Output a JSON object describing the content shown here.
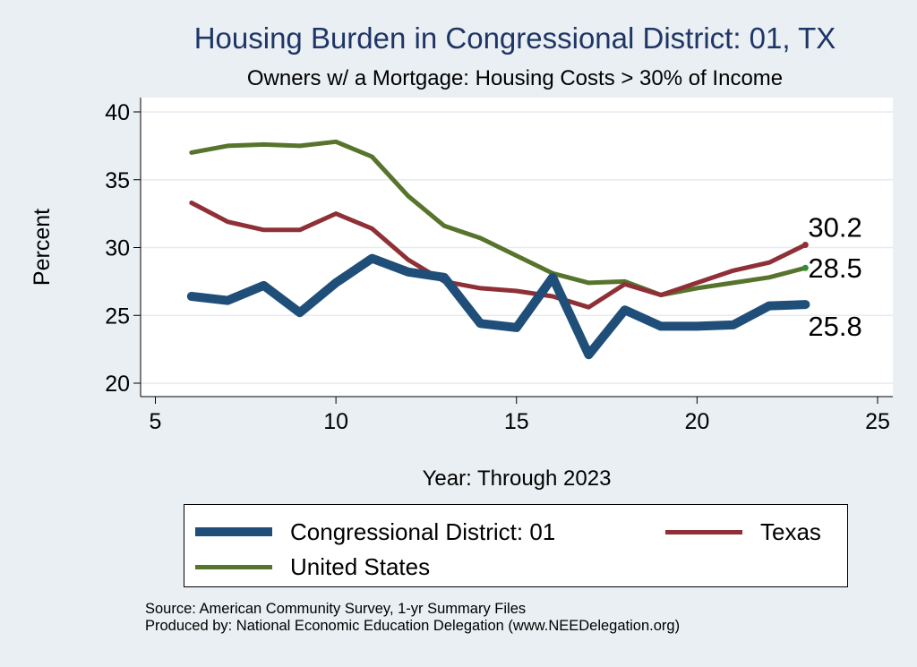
{
  "chart_data": {
    "type": "line",
    "title": "Housing Burden in Congressional District:  01, TX",
    "subtitle": "Owners w/ a Mortgage: Housing Costs > 30% of Income",
    "xlabel": "Year: Through 2023",
    "ylabel": "Percent",
    "xlim": [
      5,
      25
    ],
    "ylim": [
      20,
      40
    ],
    "xticks": [
      5,
      10,
      15,
      20,
      25
    ],
    "yticks": [
      20,
      25,
      30,
      35,
      40
    ],
    "grid": true,
    "legend_position": "bottom",
    "series": [
      {
        "name": "Congressional District:  01",
        "color": "#1f4e79",
        "x": [
          6,
          7,
          8,
          9,
          10,
          11,
          12,
          13,
          14,
          15,
          16,
          17,
          18,
          19,
          20,
          21,
          22,
          23
        ],
        "values": [
          26.4,
          26.1,
          27.2,
          25.2,
          27.4,
          29.2,
          28.2,
          27.8,
          24.4,
          24.1,
          27.8,
          22.1,
          25.4,
          24.2,
          24.2,
          24.3,
          25.7,
          25.8
        ],
        "end_label": "25.8"
      },
      {
        "name": "Texas",
        "color": "#8e3036",
        "x": [
          6,
          7,
          8,
          9,
          10,
          11,
          12,
          13,
          14,
          15,
          16,
          17,
          18,
          19,
          20,
          21,
          22,
          23
        ],
        "values": [
          33.3,
          31.9,
          31.3,
          31.3,
          32.5,
          31.4,
          29.1,
          27.5,
          27.0,
          26.8,
          26.4,
          25.6,
          27.3,
          26.5,
          27.4,
          28.3,
          28.9,
          30.2
        ],
        "end_label": "30.2"
      },
      {
        "name": "United States",
        "color": "#56742b",
        "x": [
          6,
          7,
          8,
          9,
          10,
          11,
          12,
          13,
          14,
          15,
          16,
          17,
          18,
          19,
          20,
          21,
          22,
          23
        ],
        "values": [
          37.0,
          37.5,
          37.6,
          37.5,
          37.8,
          36.7,
          33.8,
          31.6,
          30.7,
          29.4,
          28.1,
          27.4,
          27.5,
          26.5,
          27.0,
          27.4,
          27.8,
          28.5
        ],
        "end_label": "28.5"
      }
    ]
  },
  "source_lines": [
    "Source: American Community Survey, 1-yr Summary Files",
    "Produced by: National Economic Education Delegation (www.NEEDelegation.org)"
  ]
}
